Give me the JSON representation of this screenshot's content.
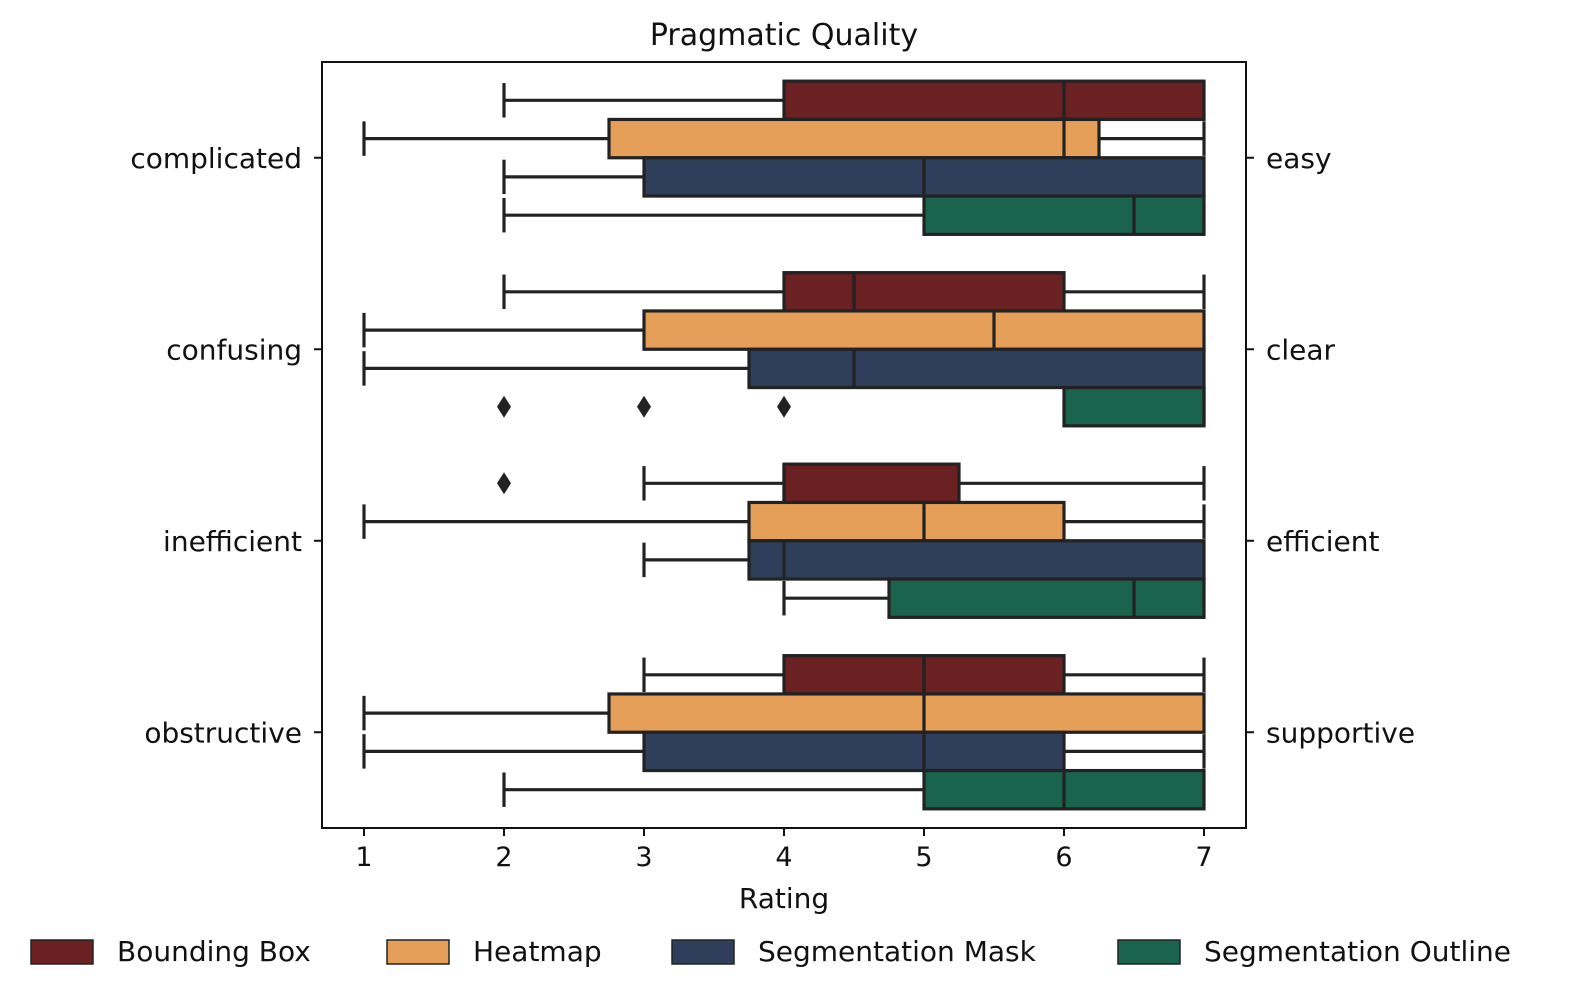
{
  "chart_data": {
    "type": "box",
    "orientation": "horizontal",
    "title": "Pragmatic Quality",
    "xlabel": "Rating",
    "xlim": [
      0.7,
      7.3
    ],
    "xticks": [
      1,
      2,
      3,
      4,
      5,
      6,
      7
    ],
    "grid": false,
    "legend_position": "bottom",
    "categories_left": [
      "complicated",
      "confusing",
      "inefficient",
      "obstructive"
    ],
    "categories_right": [
      "easy",
      "clear",
      "efficient",
      "supportive"
    ],
    "series": [
      {
        "name": "Bounding Box",
        "color": "#6b2022",
        "boxes": [
          {
            "whislo": 2,
            "q1": 4,
            "med": 6,
            "q3": 7,
            "whishi": 7,
            "fliers": []
          },
          {
            "whislo": 2,
            "q1": 4,
            "med": 4.5,
            "q3": 6,
            "whishi": 7,
            "fliers": []
          },
          {
            "whislo": 3,
            "q1": 4,
            "med": 4,
            "q3": 5.25,
            "whishi": 7,
            "fliers": [
              2
            ]
          },
          {
            "whislo": 3,
            "q1": 4,
            "med": 5,
            "q3": 6,
            "whishi": 7,
            "fliers": []
          }
        ]
      },
      {
        "name": "Heatmap",
        "color": "#e59f58",
        "boxes": [
          {
            "whislo": 1,
            "q1": 2.75,
            "med": 6,
            "q3": 6.25,
            "whishi": 7,
            "fliers": []
          },
          {
            "whislo": 1,
            "q1": 3,
            "med": 5.5,
            "q3": 7,
            "whishi": 7,
            "fliers": []
          },
          {
            "whislo": 1,
            "q1": 3.75,
            "med": 5,
            "q3": 6,
            "whishi": 7,
            "fliers": []
          },
          {
            "whislo": 1,
            "q1": 2.75,
            "med": 5,
            "q3": 7,
            "whishi": 7,
            "fliers": []
          }
        ]
      },
      {
        "name": "Segmentation Mask",
        "color": "#2f3f5b",
        "boxes": [
          {
            "whislo": 2,
            "q1": 3,
            "med": 5,
            "q3": 7,
            "whishi": 7,
            "fliers": []
          },
          {
            "whislo": 1,
            "q1": 3.75,
            "med": 4.5,
            "q3": 7,
            "whishi": 7,
            "fliers": []
          },
          {
            "whislo": 3,
            "q1": 3.75,
            "med": 4,
            "q3": 7,
            "whishi": 7,
            "fliers": []
          },
          {
            "whislo": 1,
            "q1": 3,
            "med": 5,
            "q3": 6,
            "whishi": 7,
            "fliers": []
          }
        ]
      },
      {
        "name": "Segmentation Outline",
        "color": "#1a634c",
        "boxes": [
          {
            "whislo": 2,
            "q1": 5,
            "med": 6.5,
            "q3": 7,
            "whishi": 7,
            "fliers": []
          },
          {
            "whislo": 6,
            "q1": 6,
            "med": 7,
            "q3": 7,
            "whishi": 7,
            "fliers": [
              2,
              3,
              4
            ]
          },
          {
            "whislo": 4,
            "q1": 4.75,
            "med": 6.5,
            "q3": 7,
            "whishi": 7,
            "fliers": []
          },
          {
            "whislo": 2,
            "q1": 5,
            "med": 6,
            "q3": 7,
            "whishi": 7,
            "fliers": []
          }
        ]
      }
    ]
  }
}
